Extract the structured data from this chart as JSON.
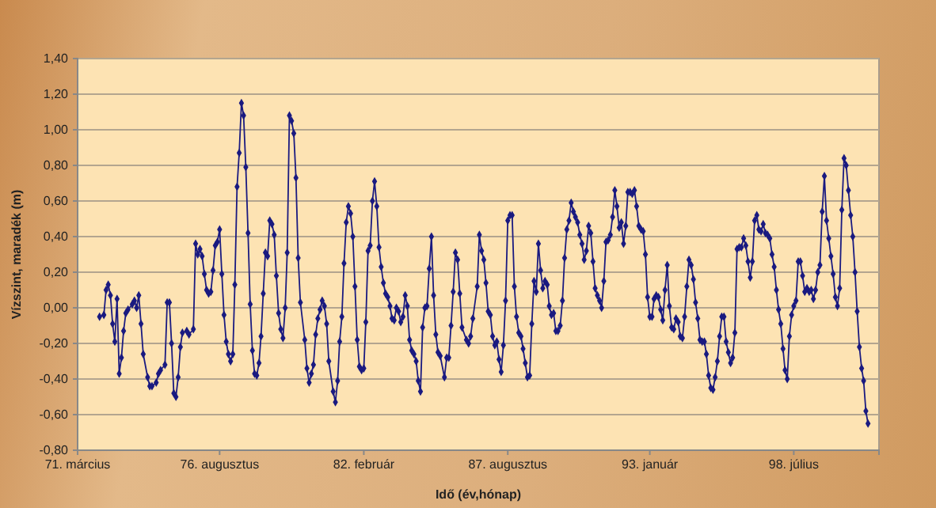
{
  "chart_data": {
    "type": "line",
    "xlabel": "Idő (év,hónap)",
    "ylabel": "Vízszint, maradék (m)",
    "xlim": [
      "1971-03",
      "2001-10"
    ],
    "xticks": [
      {
        "value": "1971-03",
        "label": "71. március"
      },
      {
        "value": "1976-08",
        "label": "76. augusztus"
      },
      {
        "value": "1982-02",
        "label": "82. február"
      },
      {
        "value": "1987-08",
        "label": "87. augusztus"
      },
      {
        "value": "1993-01",
        "label": "93. január"
      },
      {
        "value": "1998-07",
        "label": "98. július"
      }
    ],
    "ylim": [
      -0.8,
      1.4
    ],
    "yticks": [
      {
        "value": -0.8,
        "label": "-0,80"
      },
      {
        "value": -0.6,
        "label": "-0,60"
      },
      {
        "value": -0.4,
        "label": "-0,40"
      },
      {
        "value": -0.2,
        "label": "-0,20"
      },
      {
        "value": 0,
        "label": "0,00"
      },
      {
        "value": 0.2,
        "label": "0,20"
      },
      {
        "value": 0.4,
        "label": "0,40"
      },
      {
        "value": 0.6,
        "label": "0,60"
      },
      {
        "value": 0.8,
        "label": "0,80"
      },
      {
        "value": 1.0,
        "label": "1,00"
      },
      {
        "value": 1.2,
        "label": "1,20"
      },
      {
        "value": 1.4,
        "label": "1,40"
      }
    ],
    "grid": "y",
    "marker": "diamond",
    "line_style": "solid",
    "series": [
      {
        "color": "#1a1a80",
        "x": [
          "1972-01",
          "1972-03",
          "1972-04",
          "1972-05",
          "1972-06",
          "1972-07",
          "1972-08",
          "1972-09",
          "1972-10",
          "1972-11",
          "1972-12",
          "1973-01",
          "1973-02",
          "1973-04",
          "1973-05",
          "1973-06",
          "1973-07",
          "1973-08",
          "1973-09",
          "1973-11",
          "1973-12",
          "1974-01",
          "1974-03",
          "1974-04",
          "1974-05",
          "1974-07",
          "1974-08",
          "1974-09",
          "1974-10",
          "1974-11",
          "1974-12",
          "1975-01",
          "1975-02",
          "1975-03",
          "1975-05",
          "1975-06",
          "1975-08",
          "1975-09",
          "1975-10",
          "1975-11",
          "1975-12",
          "1976-01",
          "1976-02",
          "1976-03",
          "1976-04",
          "1976-05",
          "1976-06",
          "1976-07",
          "1976-08",
          "1976-09",
          "1976-10",
          "1976-11",
          "1976-12",
          "1977-01",
          "1977-02",
          "1977-03",
          "1977-04",
          "1977-05",
          "1977-06",
          "1977-07",
          "1977-08",
          "1977-09",
          "1977-10",
          "1977-11",
          "1977-12",
          "1978-01",
          "1978-02",
          "1978-03",
          "1978-04",
          "1978-05",
          "1978-06",
          "1978-07",
          "1978-08",
          "1978-09",
          "1978-10",
          "1978-11",
          "1978-12",
          "1979-01",
          "1979-02",
          "1979-03",
          "1979-04",
          "1979-05",
          "1979-06",
          "1979-07",
          "1979-08",
          "1979-09",
          "1979-11",
          "1979-12",
          "1980-01",
          "1980-02",
          "1980-03",
          "1980-04",
          "1980-05",
          "1980-06",
          "1980-07",
          "1980-08",
          "1980-09",
          "1980-10",
          "1980-12",
          "1981-01",
          "1981-02",
          "1981-03",
          "1981-04",
          "1981-05",
          "1981-06",
          "1981-07",
          "1981-08",
          "1981-09",
          "1981-10",
          "1981-11",
          "1981-12",
          "1982-01",
          "1982-02",
          "1982-03",
          "1982-04",
          "1982-05",
          "1982-06",
          "1982-07",
          "1982-08",
          "1982-09",
          "1982-10",
          "1982-11",
          "1982-12",
          "1983-01",
          "1983-02",
          "1983-03",
          "1983-04",
          "1983-05",
          "1983-06",
          "1983-07",
          "1983-08",
          "1983-09",
          "1983-10",
          "1983-11",
          "1983-12",
          "1984-01",
          "1984-02",
          "1984-03",
          "1984-04",
          "1984-05",
          "1984-06",
          "1984-07",
          "1984-08",
          "1984-09",
          "1984-10",
          "1984-11",
          "1984-12",
          "1985-01",
          "1985-03",
          "1985-04",
          "1985-05",
          "1985-06",
          "1985-07",
          "1985-08",
          "1985-09",
          "1985-10",
          "1985-11",
          "1986-01",
          "1986-02",
          "1986-03",
          "1986-04",
          "1986-06",
          "1986-07",
          "1986-08",
          "1986-09",
          "1986-10",
          "1986-11",
          "1986-12",
          "1987-01",
          "1987-02",
          "1987-03",
          "1987-04",
          "1987-05",
          "1987-06",
          "1987-07",
          "1987-08",
          "1987-09",
          "1987-10",
          "1987-11",
          "1987-12",
          "1988-01",
          "1988-02",
          "1988-03",
          "1988-04",
          "1988-05",
          "1988-06",
          "1988-07",
          "1988-08",
          "1988-09",
          "1988-10",
          "1988-11",
          "1988-12",
          "1989-01",
          "1989-02",
          "1989-03",
          "1989-04",
          "1989-05",
          "1989-06",
          "1989-07",
          "1989-08",
          "1989-09",
          "1989-10",
          "1989-11",
          "1989-12",
          "1990-01",
          "1990-02",
          "1990-03",
          "1990-04",
          "1990-05",
          "1990-06",
          "1990-07",
          "1990-08",
          "1990-09",
          "1990-10",
          "1990-11",
          "1990-12",
          "1991-01",
          "1991-02",
          "1991-03",
          "1991-04",
          "1991-05",
          "1991-06",
          "1991-07",
          "1991-08",
          "1991-09",
          "1991-10",
          "1991-11",
          "1991-12",
          "1992-01",
          "1992-02",
          "1992-03",
          "1992-04",
          "1992-05",
          "1992-06",
          "1992-07",
          "1992-08",
          "1992-09",
          "1992-10",
          "1992-11",
          "1992-12",
          "1993-01",
          "1993-02",
          "1993-03",
          "1993-04",
          "1993-05",
          "1993-06",
          "1993-07",
          "1993-08",
          "1993-09",
          "1993-10",
          "1993-11",
          "1993-12",
          "1994-01",
          "1994-02",
          "1994-03",
          "1994-04",
          "1994-05",
          "1994-06",
          "1994-07",
          "1994-08",
          "1994-09",
          "1994-10",
          "1994-11",
          "1994-12",
          "1995-01",
          "1995-02",
          "1995-03",
          "1995-04",
          "1995-05",
          "1995-06",
          "1995-07",
          "1995-08",
          "1995-09",
          "1995-10",
          "1995-11",
          "1995-12",
          "1996-01",
          "1996-02",
          "1996-03",
          "1996-04",
          "1996-05",
          "1996-06",
          "1996-07",
          "1996-08",
          "1996-09",
          "1996-10",
          "1996-11",
          "1996-12",
          "1997-01",
          "1997-02",
          "1997-03",
          "1997-04",
          "1997-05",
          "1997-06",
          "1997-07",
          "1997-08",
          "1997-09",
          "1997-10",
          "1997-11",
          "1997-12",
          "1998-01",
          "1998-02",
          "1998-03",
          "1998-04",
          "1998-05",
          "1998-06",
          "1998-07",
          "1998-08",
          "1998-09",
          "1998-10",
          "1998-11",
          "1998-12",
          "1999-01",
          "1999-02",
          "1999-03",
          "1999-04",
          "1999-05",
          "1999-06",
          "1999-07",
          "1999-08",
          "1999-09",
          "1999-10",
          "1999-11",
          "1999-12",
          "2000-01",
          "2000-02",
          "2000-03",
          "2000-04",
          "2000-05",
          "2000-06",
          "2000-07",
          "2000-08",
          "2000-09",
          "2000-10",
          "2000-11",
          "2000-12",
          "2001-01",
          "2001-02",
          "2001-03",
          "2001-04",
          "2001-05"
        ],
        "values": [
          -0.05,
          -0.04,
          0.1,
          0.13,
          0.07,
          -0.09,
          -0.19,
          0.05,
          -0.37,
          -0.28,
          -0.13,
          -0.03,
          -0.01,
          0.02,
          0.04,
          0.0,
          0.07,
          -0.09,
          -0.26,
          -0.39,
          -0.44,
          -0.44,
          -0.42,
          -0.37,
          -0.35,
          -0.32,
          0.03,
          0.03,
          -0.2,
          -0.48,
          -0.5,
          -0.39,
          -0.22,
          -0.14,
          -0.13,
          -0.15,
          -0.12,
          0.36,
          0.3,
          0.33,
          0.29,
          0.19,
          0.1,
          0.08,
          0.09,
          0.21,
          0.35,
          0.37,
          0.44,
          0.19,
          -0.04,
          -0.19,
          -0.26,
          -0.3,
          -0.26,
          0.13,
          0.68,
          0.87,
          1.15,
          1.08,
          0.79,
          0.42,
          0.02,
          -0.24,
          -0.37,
          -0.38,
          -0.31,
          -0.16,
          0.08,
          0.31,
          0.29,
          0.49,
          0.47,
          0.41,
          0.18,
          -0.03,
          -0.12,
          -0.17,
          0.0,
          0.31,
          1.08,
          1.05,
          0.98,
          0.73,
          0.28,
          0.03,
          -0.18,
          -0.34,
          -0.42,
          -0.37,
          -0.32,
          -0.15,
          -0.06,
          -0.01,
          0.04,
          0.01,
          -0.09,
          -0.3,
          -0.47,
          -0.53,
          -0.41,
          -0.19,
          -0.05,
          0.25,
          0.48,
          0.57,
          0.53,
          0.4,
          0.12,
          -0.18,
          -0.33,
          -0.35,
          -0.34,
          -0.08,
          0.32,
          0.35,
          0.6,
          0.71,
          0.57,
          0.34,
          0.23,
          0.14,
          0.08,
          0.06,
          0.01,
          -0.06,
          -0.07,
          0.0,
          -0.02,
          -0.08,
          -0.05,
          0.07,
          0.01,
          -0.18,
          -0.24,
          -0.26,
          -0.3,
          -0.41,
          -0.47,
          -0.11,
          0.0,
          0.01,
          0.22,
          0.4,
          0.07,
          -0.15,
          -0.25,
          -0.27,
          -0.39,
          -0.28,
          -0.28,
          -0.1,
          0.09,
          0.31,
          0.27,
          0.08,
          -0.11,
          -0.18,
          -0.2,
          -0.16,
          -0.06,
          0.12,
          0.41,
          0.32,
          0.27,
          0.14,
          -0.02,
          -0.04,
          -0.16,
          -0.21,
          -0.19,
          -0.29,
          -0.36,
          -0.21,
          0.04,
          0.49,
          0.52,
          0.52,
          0.12,
          -0.05,
          -0.14,
          -0.16,
          -0.23,
          -0.31,
          -0.39,
          -0.38,
          -0.09,
          0.15,
          0.09,
          0.36,
          0.21,
          0.11,
          0.15,
          0.13,
          0.01,
          -0.04,
          -0.03,
          -0.13,
          -0.13,
          -0.1,
          0.04,
          0.28,
          0.44,
          0.49,
          0.59,
          0.54,
          0.51,
          0.48,
          0.41,
          0.36,
          0.27,
          0.32,
          0.46,
          0.42,
          0.26,
          0.11,
          0.07,
          0.04,
          0.0,
          0.15,
          0.37,
          0.38,
          0.41,
          0.51,
          0.66,
          0.57,
          0.45,
          0.48,
          0.36,
          0.46,
          0.65,
          0.65,
          0.64,
          0.66,
          0.57,
          0.46,
          0.44,
          0.43,
          0.3,
          0.06,
          -0.05,
          -0.05,
          0.05,
          0.07,
          0.06,
          -0.01,
          -0.07,
          0.1,
          0.24,
          0.01,
          -0.11,
          -0.12,
          -0.06,
          -0.08,
          -0.16,
          -0.17,
          -0.05,
          0.12,
          0.27,
          0.24,
          0.16,
          0.03,
          -0.06,
          -0.18,
          -0.19,
          -0.19,
          -0.26,
          -0.38,
          -0.45,
          -0.46,
          -0.39,
          -0.3,
          -0.16,
          -0.05,
          -0.05,
          -0.19,
          -0.25,
          -0.31,
          -0.28,
          -0.14,
          0.33,
          0.34,
          0.34,
          0.39,
          0.35,
          0.26,
          0.17,
          0.26,
          0.49,
          0.52,
          0.44,
          0.43,
          0.47,
          0.42,
          0.41,
          0.39,
          0.3,
          0.23,
          0.1,
          -0.01,
          -0.09,
          -0.23,
          -0.35,
          -0.4,
          -0.16,
          -0.04,
          0.01,
          0.04,
          0.26,
          0.26,
          0.18,
          0.09,
          0.11,
          0.09,
          0.1,
          0.05,
          0.1,
          0.2,
          0.24,
          0.54,
          0.74,
          0.49,
          0.39,
          0.29,
          0.19,
          0.06,
          0.01,
          0.11,
          0.55,
          0.84,
          0.8,
          0.66,
          0.52,
          0.4,
          0.2,
          -0.02,
          -0.22,
          -0.34,
          -0.41,
          -0.58,
          -0.65
        ]
      }
    ]
  }
}
